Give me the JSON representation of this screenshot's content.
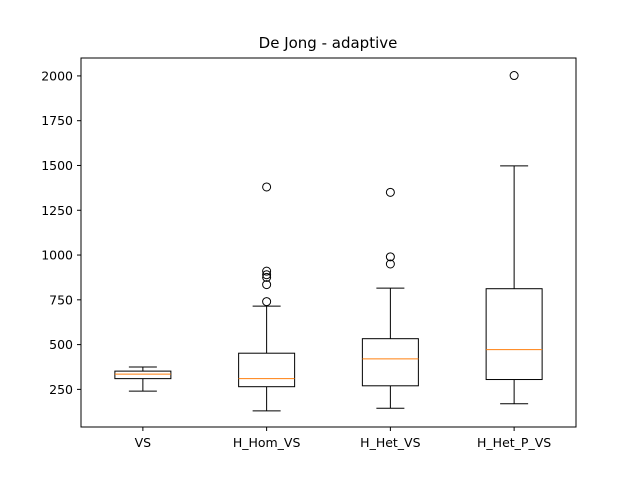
{
  "chart_data": {
    "type": "boxplot",
    "title": "De Jong - adaptive",
    "xlabel": "",
    "ylabel": "",
    "ylim": [
      40,
      2100
    ],
    "yticks": [
      250,
      500,
      750,
      1000,
      1250,
      1500,
      1750,
      2000
    ],
    "grid": false,
    "categories": [
      "VS",
      "H_Hom_VS",
      "H_Het_VS",
      "H_Het_P_VS"
    ],
    "boxes": [
      {
        "label": "VS",
        "whisker_low": 240,
        "q1": 310,
        "median": 335,
        "q3": 352,
        "whisker_high": 375,
        "outliers": []
      },
      {
        "label": "H_Hom_VS",
        "whisker_low": 130,
        "q1": 265,
        "median": 310,
        "q3": 452,
        "whisker_high": 715,
        "outliers": [
          740,
          835,
          875,
          890,
          910,
          1380
        ]
      },
      {
        "label": "H_Het_VS",
        "whisker_low": 145,
        "q1": 270,
        "median": 420,
        "q3": 533,
        "whisker_high": 815,
        "outliers": [
          950,
          990,
          1350
        ]
      },
      {
        "label": "H_Het_P_VS",
        "whisker_low": 170,
        "q1": 305,
        "median": 472,
        "q3": 812,
        "whisker_high": 1498,
        "outliers": [
          2002
        ]
      }
    ],
    "colors": {
      "box": "#000000",
      "median": "#ff7f0e",
      "background": "#ffffff"
    }
  }
}
